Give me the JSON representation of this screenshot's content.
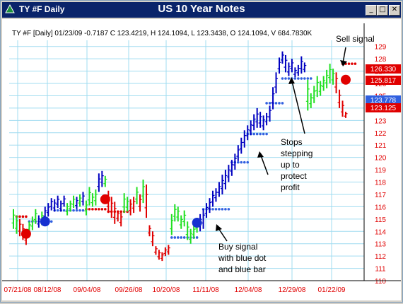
{
  "window": {
    "title": "TY #F Daily",
    "chart_title": "US 10 Year Notes",
    "controls": [
      "_",
      "□",
      "✕"
    ]
  },
  "info_line": "TY #F [Daily] 01/23/09 -0.7187 C 123.4219, H 124.1094, L 123.3438, O 124.1094, V 684.7830K",
  "annotations": {
    "sell": "Sell signal",
    "stops": [
      "Stops",
      "stepping",
      "up to",
      "protect",
      "profit"
    ],
    "buy": [
      "Buy signal",
      "with blue dot",
      "and blue bar"
    ]
  },
  "price_tags": [
    {
      "label": "126.330",
      "color": "#e00000"
    },
    {
      "label": "125.817",
      "color": "#e00000"
    },
    {
      "label": "123.778",
      "color": "#3060e0"
    },
    {
      "label": "123.125",
      "color": "#e00000"
    }
  ],
  "colors": {
    "up": "#20e020",
    "down": "#e00000",
    "blue": "#0000c0",
    "dot_blue": "#3060e0",
    "grid": "#a0dcf0",
    "axis_text": "#e00000"
  },
  "chart_data": {
    "type": "ohlc-bar",
    "title": "US 10 Year Notes",
    "y_ticks": [
      110,
      111,
      112,
      113,
      114,
      115,
      116,
      117,
      118,
      119,
      120,
      121,
      122,
      123,
      124,
      125,
      126,
      127,
      128,
      129
    ],
    "ylim": [
      110,
      129.5
    ],
    "x_tick_labels": [
      "07/21/08",
      "08/12/08",
      "09/04/08",
      "09/26/08",
      "10/20/08",
      "11/11/08",
      "12/04/08",
      "12/29/08",
      "01/22/09"
    ],
    "bars": [
      {
        "c": "u",
        "h": 115.8,
        "l": 114.2
      },
      {
        "c": "u",
        "h": 115.3,
        "l": 113.8
      },
      {
        "c": "d",
        "h": 115.0,
        "l": 113.6
      },
      {
        "c": "d",
        "h": 114.6,
        "l": 113.3
      },
      {
        "c": "r",
        "h": 114.2,
        "l": 112.9
      },
      {
        "c": "u",
        "h": 114.8,
        "l": 113.9
      },
      {
        "c": "u",
        "h": 115.2,
        "l": 114.1
      },
      {
        "c": "u",
        "h": 115.8,
        "l": 114.6
      },
      {
        "c": "b",
        "h": 115.3,
        "l": 114.3
      },
      {
        "c": "u",
        "h": 115.6,
        "l": 114.5
      },
      {
        "c": "b",
        "h": 116.0,
        "l": 114.9
      },
      {
        "c": "b",
        "h": 116.3,
        "l": 115.2
      },
      {
        "c": "b",
        "h": 116.7,
        "l": 115.7
      },
      {
        "c": "b",
        "h": 116.6,
        "l": 115.6
      },
      {
        "c": "b",
        "h": 116.9,
        "l": 115.9
      },
      {
        "c": "b",
        "h": 116.5,
        "l": 115.6
      },
      {
        "c": "b",
        "h": 116.9,
        "l": 116.0
      },
      {
        "c": "u",
        "h": 116.3,
        "l": 115.3
      },
      {
        "c": "u",
        "h": 116.5,
        "l": 115.6
      },
      {
        "c": "u",
        "h": 116.9,
        "l": 115.9
      },
      {
        "c": "b",
        "h": 116.8,
        "l": 115.8
      },
      {
        "c": "u",
        "h": 117.0,
        "l": 116.0
      },
      {
        "c": "b",
        "h": 117.2,
        "l": 116.1
      },
      {
        "c": "u",
        "h": 116.5,
        "l": 115.3
      },
      {
        "c": "u",
        "h": 117.6,
        "l": 116.1
      },
      {
        "c": "u",
        "h": 117.1,
        "l": 116.0
      },
      {
        "c": "u",
        "h": 117.4,
        "l": 116.1
      },
      {
        "c": "b",
        "h": 118.7,
        "l": 117.2
      },
      {
        "c": "b",
        "h": 118.9,
        "l": 117.6
      },
      {
        "c": "u",
        "h": 118.5,
        "l": 117.6
      },
      {
        "c": "d",
        "h": 117.3,
        "l": 115.5
      },
      {
        "c": "d",
        "h": 116.8,
        "l": 115.1
      },
      {
        "c": "d",
        "h": 116.4,
        "l": 114.6
      },
      {
        "c": "d",
        "h": 115.7,
        "l": 114.8
      },
      {
        "c": "d",
        "h": 115.5,
        "l": 114.4
      },
      {
        "c": "u",
        "h": 117.1,
        "l": 115.5
      },
      {
        "c": "u",
        "h": 116.8,
        "l": 115.6
      },
      {
        "c": "d",
        "h": 116.6,
        "l": 115.3
      },
      {
        "c": "d",
        "h": 116.8,
        "l": 115.5
      },
      {
        "c": "u",
        "h": 117.6,
        "l": 116.2
      },
      {
        "c": "d",
        "h": 117.0,
        "l": 115.6
      },
      {
        "c": "u",
        "h": 118.2,
        "l": 116.3
      },
      {
        "c": "d",
        "h": 117.8,
        "l": 115.1
      },
      {
        "c": "d",
        "h": 114.5,
        "l": 113.6
      },
      {
        "c": "d",
        "h": 114.0,
        "l": 112.8
      },
      {
        "c": "d",
        "h": 112.8,
        "l": 112.1
      },
      {
        "c": "d",
        "h": 112.5,
        "l": 111.7
      },
      {
        "c": "d",
        "h": 112.3,
        "l": 111.6
      },
      {
        "c": "d",
        "h": 112.7,
        "l": 112.0
      },
      {
        "c": "d",
        "h": 112.9,
        "l": 112.1
      },
      {
        "c": "u",
        "h": 115.4,
        "l": 113.7
      },
      {
        "c": "u",
        "h": 116.2,
        "l": 114.8
      },
      {
        "c": "u",
        "h": 116.0,
        "l": 114.8
      },
      {
        "c": "u",
        "h": 115.3,
        "l": 114.2
      },
      {
        "c": "u",
        "h": 115.7,
        "l": 114.4
      },
      {
        "c": "u",
        "h": 114.8,
        "l": 113.3
      },
      {
        "c": "u",
        "h": 114.2,
        "l": 113.0
      },
      {
        "c": "u",
        "h": 114.5,
        "l": 113.4
      },
      {
        "c": "u",
        "h": 115.1,
        "l": 113.9
      },
      {
        "c": "b",
        "h": 115.4,
        "l": 114.0
      },
      {
        "c": "b",
        "h": 115.8,
        "l": 114.2
      },
      {
        "c": "b",
        "h": 116.3,
        "l": 115.1
      },
      {
        "c": "b",
        "h": 116.7,
        "l": 115.5
      },
      {
        "c": "b",
        "h": 117.3,
        "l": 116.0
      },
      {
        "c": "b",
        "h": 117.5,
        "l": 116.4
      },
      {
        "c": "b",
        "h": 118.0,
        "l": 116.8
      },
      {
        "c": "b",
        "h": 118.6,
        "l": 117.0
      },
      {
        "c": "b",
        "h": 119.0,
        "l": 117.4
      },
      {
        "c": "b",
        "h": 119.4,
        "l": 118.0
      },
      {
        "c": "b",
        "h": 119.8,
        "l": 118.5
      },
      {
        "c": "b",
        "h": 120.3,
        "l": 119.0
      },
      {
        "c": "b",
        "h": 121.0,
        "l": 119.7
      },
      {
        "c": "b",
        "h": 121.6,
        "l": 120.3
      },
      {
        "c": "b",
        "h": 122.2,
        "l": 120.8
      },
      {
        "c": "b",
        "h": 122.6,
        "l": 121.4
      },
      {
        "c": "b",
        "h": 123.0,
        "l": 121.8
      },
      {
        "c": "b",
        "h": 123.5,
        "l": 122.2
      },
      {
        "c": "b",
        "h": 124.0,
        "l": 122.4
      },
      {
        "c": "b",
        "h": 123.7,
        "l": 122.4
      },
      {
        "c": "b",
        "h": 123.4,
        "l": 122.2
      },
      {
        "c": "b",
        "h": 123.6,
        "l": 122.6
      },
      {
        "c": "b",
        "h": 124.2,
        "l": 122.9
      },
      {
        "c": "b",
        "h": 125.7,
        "l": 123.9
      },
      {
        "c": "b",
        "h": 126.9,
        "l": 125.2
      },
      {
        "c": "b",
        "h": 128.1,
        "l": 126.8
      },
      {
        "c": "b",
        "h": 128.6,
        "l": 127.6
      },
      {
        "c": "b",
        "h": 128.3,
        "l": 126.9
      },
      {
        "c": "b",
        "h": 127.7,
        "l": 126.6
      },
      {
        "c": "b",
        "h": 128.0,
        "l": 126.9
      },
      {
        "c": "b",
        "h": 127.3,
        "l": 126.5
      },
      {
        "c": "b",
        "h": 127.5,
        "l": 126.6
      },
      {
        "c": "b",
        "h": 128.2,
        "l": 126.8
      },
      {
        "c": "b",
        "h": 127.7,
        "l": 126.9
      },
      {
        "c": "u",
        "h": 126.3,
        "l": 123.8
      },
      {
        "c": "u",
        "h": 125.2,
        "l": 124.0
      },
      {
        "c": "u",
        "h": 125.8,
        "l": 124.4
      },
      {
        "c": "u",
        "h": 126.6,
        "l": 124.9
      },
      {
        "c": "u",
        "h": 126.2,
        "l": 125.0
      },
      {
        "c": "u",
        "h": 126.6,
        "l": 125.4
      },
      {
        "c": "u",
        "h": 127.1,
        "l": 125.6
      },
      {
        "c": "u",
        "h": 127.6,
        "l": 126.0
      },
      {
        "c": "u",
        "h": 127.2,
        "l": 125.9
      },
      {
        "c": "d",
        "h": 126.9,
        "l": 125.2
      },
      {
        "c": "d",
        "h": 125.5,
        "l": 124.0
      },
      {
        "c": "d",
        "h": 124.6,
        "l": 123.3
      },
      {
        "c": "d",
        "h": 123.7,
        "l": 123.2
      }
    ],
    "stop_segments": [
      {
        "c": "d",
        "from": 1,
        "to": 4,
        "y": 115.2
      },
      {
        "c": "b",
        "from": 5,
        "to": 12,
        "y": 114.8
      },
      {
        "c": "b",
        "from": 13,
        "to": 22,
        "y": 115.7
      },
      {
        "c": "d",
        "from": 23,
        "to": 29,
        "y": 115.8
      },
      {
        "c": "d",
        "from": 30,
        "to": 36,
        "y": 115.6
      },
      {
        "c": "b",
        "from": 50,
        "to": 58,
        "y": 113.5
      },
      {
        "c": "b",
        "from": 60,
        "to": 68,
        "y": 115.8
      },
      {
        "c": "b",
        "from": 69,
        "to": 74,
        "y": 119.6
      },
      {
        "c": "b",
        "from": 74,
        "to": 80,
        "y": 121.9
      },
      {
        "c": "b",
        "from": 80,
        "to": 85,
        "y": 124.4
      },
      {
        "c": "b",
        "from": 85,
        "to": 94,
        "y": 126.4
      },
      {
        "c": "d",
        "from": 104,
        "to": 108,
        "y": 127.6
      }
    ],
    "signals": [
      {
        "c": "d",
        "i": 4,
        "y": 113.8
      },
      {
        "c": "b",
        "i": 10,
        "y": 114.8
      },
      {
        "c": "d",
        "i": 29,
        "y": 116.6
      },
      {
        "c": "b",
        "i": 58,
        "y": 114.7
      },
      {
        "c": "d",
        "i": 105,
        "y": 126.3
      }
    ]
  }
}
